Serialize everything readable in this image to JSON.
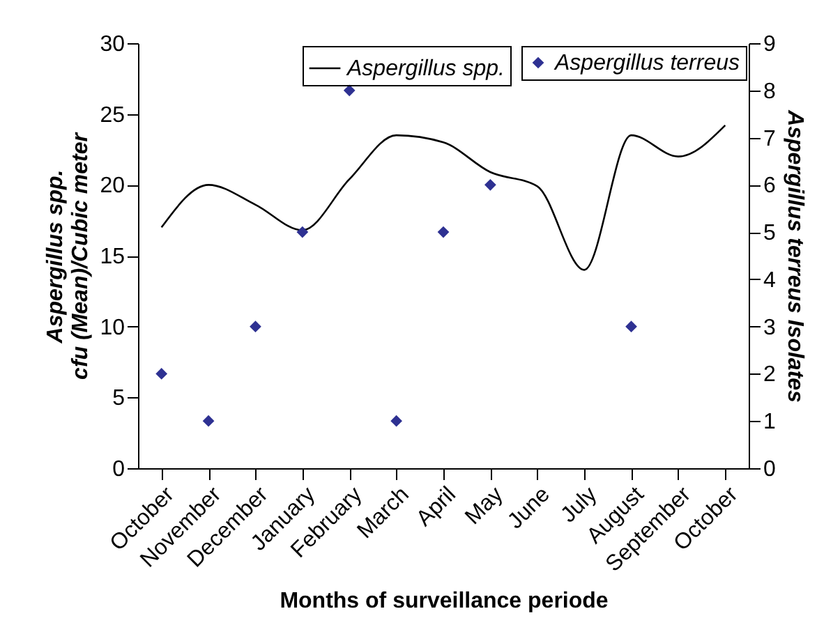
{
  "chart_data": {
    "type": "line",
    "categories": [
      "October",
      "November",
      "December",
      "January",
      "February",
      "March",
      "April",
      "May",
      "June",
      "July",
      "August",
      "September",
      "October"
    ],
    "xlabel": "Months of surveillance periode",
    "ylabel": "Aspergillus spp.\ncfu (Mean)/Cubic meter",
    "y2label": "Aspergillus terreus Isolates",
    "series": [
      {
        "name": "Aspergillus spp.",
        "color": "#000000",
        "values": [
          17.0,
          20.0,
          18.6,
          16.8,
          20.4,
          23.5,
          23.0,
          20.9,
          19.9,
          14.0,
          23.5,
          22.0,
          24.2
        ]
      },
      {
        "name": "Aspergillus terreus",
        "type": "scatter",
        "marker": "diamond",
        "axis": "y2",
        "color": "#2e3192",
        "values": [
          2,
          1,
          3,
          5,
          8,
          1,
          5,
          6,
          null,
          null,
          3,
          null,
          null
        ]
      }
    ],
    "ylim": [
      0,
      30
    ],
    "yticks": [
      0,
      5,
      10,
      15,
      20,
      25,
      30
    ],
    "y2lim": [
      0,
      9
    ],
    "y2ticks": [
      0,
      1,
      2,
      3,
      4,
      5,
      6,
      7,
      8,
      9
    ],
    "grid": false,
    "legend": "top right"
  }
}
